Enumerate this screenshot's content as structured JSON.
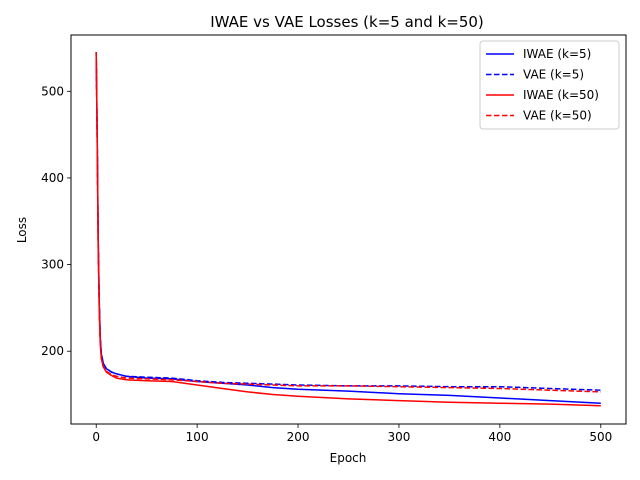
{
  "chart_data": {
    "type": "line",
    "title": "IWAE vs VAE Losses (k=5 and k=50)",
    "xlabel": "Epoch",
    "ylabel": "Loss",
    "xlim": [
      -25,
      525
    ],
    "ylim": [
      116,
      565
    ],
    "xticks": [
      0,
      100,
      200,
      300,
      400,
      500
    ],
    "yticks": [
      200,
      300,
      400,
      500
    ],
    "grid": false,
    "legend_position": "top-right",
    "series": [
      {
        "name": "IWAE (k=5)",
        "color": "#0000ff",
        "dash": "solid",
        "x": [
          0,
          1,
          2,
          3,
          4,
          5,
          7,
          10,
          15,
          20,
          30,
          50,
          75,
          100,
          125,
          150,
          175,
          200,
          250,
          300,
          350,
          400,
          450,
          500
        ],
        "y": [
          545,
          450,
          330,
          255,
          215,
          197,
          186,
          180,
          176,
          174,
          171,
          169,
          168,
          165,
          163,
          161,
          158,
          156,
          154,
          151,
          149,
          146,
          143,
          140
        ]
      },
      {
        "name": "VAE (k=5)",
        "color": "#0000ff",
        "dash": "dashed",
        "x": [
          0,
          1,
          2,
          3,
          4,
          5,
          7,
          10,
          15,
          20,
          30,
          50,
          75,
          100,
          125,
          150,
          175,
          200,
          250,
          300,
          350,
          400,
          450,
          500
        ],
        "y": [
          545,
          450,
          330,
          255,
          215,
          197,
          186,
          180,
          176,
          174,
          171,
          170,
          169,
          166,
          164,
          163,
          162,
          161,
          160,
          160,
          159,
          159,
          157,
          155
        ]
      },
      {
        "name": "IWAE (k=50)",
        "color": "#ff0000",
        "dash": "solid",
        "x": [
          0,
          1,
          2,
          3,
          4,
          5,
          7,
          10,
          15,
          20,
          30,
          50,
          75,
          100,
          125,
          150,
          175,
          200,
          250,
          300,
          350,
          400,
          450,
          500
        ],
        "y": [
          545,
          440,
          320,
          245,
          208,
          192,
          182,
          176,
          172,
          169,
          167,
          166,
          165,
          161,
          157,
          153,
          150,
          148,
          145,
          143,
          141,
          140,
          139,
          137
        ]
      },
      {
        "name": "VAE (k=50)",
        "color": "#ff0000",
        "dash": "dashed",
        "x": [
          0,
          1,
          2,
          3,
          4,
          5,
          7,
          10,
          15,
          20,
          30,
          50,
          75,
          100,
          125,
          150,
          175,
          200,
          250,
          300,
          350,
          400,
          450,
          500
        ],
        "y": [
          545,
          440,
          320,
          245,
          208,
          192,
          182,
          177,
          173,
          171,
          169,
          168,
          167,
          165,
          163,
          162,
          161,
          160,
          160,
          159,
          158,
          157,
          155,
          153
        ]
      }
    ]
  }
}
